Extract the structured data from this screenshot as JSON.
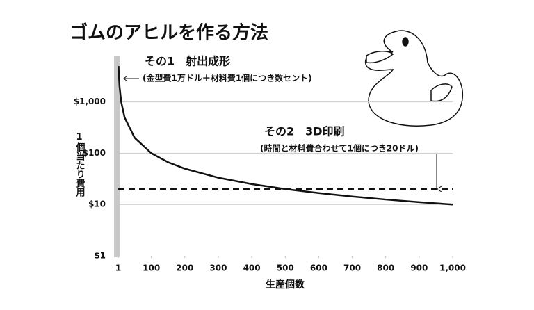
{
  "chart_data": {
    "type": "line",
    "title": "ゴムのアヒルを作る方法",
    "xlabel": "生産個数",
    "ylabel": "1個当たり費用",
    "log_y": true,
    "grid": true,
    "xlim": [
      1,
      1000
    ],
    "ylim": [
      1,
      8000
    ],
    "xticks": [
      1,
      100,
      200,
      300,
      400,
      500,
      600,
      700,
      800,
      900,
      {
        "value": 1000,
        "label": "1,000"
      }
    ],
    "yticks": [
      {
        "value": 1,
        "label": "$1"
      },
      {
        "value": 10,
        "label": "$10"
      },
      {
        "value": 100,
        "label": "$100"
      },
      {
        "value": 1000,
        "label": "$1,000"
      }
    ],
    "series": [
      {
        "name": "その1　射出成形",
        "note": "(金型費1万ドル＋材料費1個につき数セント)",
        "color": "#111111",
        "dash": false,
        "x": [
          2,
          3,
          5,
          10,
          20,
          50,
          100,
          150,
          200,
          300,
          400,
          500,
          600,
          700,
          800,
          900,
          1000
        ],
        "values": [
          5000,
          3333,
          2000,
          1000,
          500,
          200,
          100,
          66.7,
          50,
          33.3,
          25,
          20,
          16.7,
          14.3,
          12.5,
          11.1,
          10
        ]
      },
      {
        "name": "その2　3D印刷",
        "note": "(時間と材料費合わせて1個につき20ドル)",
        "color": "#111111",
        "dash": true,
        "x": [
          1,
          1000
        ],
        "values": [
          20,
          20
        ]
      }
    ]
  }
}
